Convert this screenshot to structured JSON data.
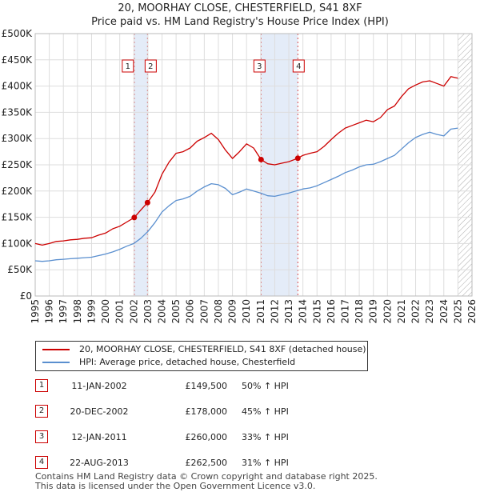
{
  "title_line1": "20, MOORHAY CLOSE, CHESTERFIELD, S41 8XF",
  "title_line2": "Price paid vs. HM Land Registry's House Price Index (HPI)",
  "legend": {
    "property": "20, MOORHAY CLOSE, CHESTERFIELD, S41 8XF (detached house)",
    "hpi": "HPI: Average price, detached house, Chesterfield"
  },
  "colors": {
    "property": "#cc0000",
    "hpi": "#5a8fcf",
    "shade": "#e4ecf8",
    "grid": "#dddddd"
  },
  "sales": [
    {
      "num": "1",
      "date": "11-JAN-2002",
      "price": "£149,500",
      "hpi": "50% ↑ HPI"
    },
    {
      "num": "2",
      "date": "20-DEC-2002",
      "price": "£178,000",
      "hpi": "45% ↑ HPI"
    },
    {
      "num": "3",
      "date": "12-JAN-2011",
      "price": "£260,000",
      "hpi": "33% ↑ HPI"
    },
    {
      "num": "4",
      "date": "22-AUG-2013",
      "price": "£262,500",
      "hpi": "31% ↑ HPI"
    }
  ],
  "footer_line1": "Contains HM Land Registry data © Crown copyright and database right 2025.",
  "footer_line2": "This data is licensed under the Open Government Licence v3.0.",
  "chart_data": {
    "type": "line",
    "title": "20, MOORHAY CLOSE, CHESTERFIELD, S41 8XF",
    "subtitle": "Price paid vs. HM Land Registry's House Price Index (HPI)",
    "xlabel": "",
    "ylabel": "",
    "xlim": [
      1995,
      2026
    ],
    "ylim": [
      0,
      500000
    ],
    "y_ticks": [
      0,
      50000,
      100000,
      150000,
      200000,
      250000,
      300000,
      350000,
      400000,
      450000,
      500000
    ],
    "y_tick_labels": [
      "£0",
      "£50K",
      "£100K",
      "£150K",
      "£200K",
      "£250K",
      "£300K",
      "£350K",
      "£400K",
      "£450K",
      "£500K"
    ],
    "x_ticks": [
      1995,
      1996,
      1997,
      1998,
      1999,
      2000,
      2001,
      2002,
      2003,
      2004,
      2005,
      2006,
      2007,
      2008,
      2009,
      2010,
      2011,
      2012,
      2013,
      2014,
      2015,
      2016,
      2017,
      2018,
      2019,
      2020,
      2021,
      2022,
      2023,
      2024,
      2025,
      2026
    ],
    "grid": true,
    "shaded_periods": [
      [
        2002.03,
        2002.97
      ],
      [
        2011.03,
        2013.64
      ]
    ],
    "hatched_future_from": 2025.0,
    "series": [
      {
        "name": "20, MOORHAY CLOSE, CHESTERFIELD, S41 8XF (detached house)",
        "x": [
          1995.0,
          1995.5,
          1996.0,
          1996.5,
          1997.0,
          1997.5,
          1998.0,
          1998.5,
          1999.0,
          1999.5,
          2000.0,
          2000.5,
          2001.0,
          2001.5,
          2002.03,
          2002.5,
          2002.97,
          2003.5,
          2004.0,
          2004.5,
          2005.0,
          2005.5,
          2006.0,
          2006.5,
          2007.0,
          2007.5,
          2008.0,
          2008.5,
          2009.0,
          2009.5,
          2010.0,
          2010.5,
          2011.03,
          2011.5,
          2012.0,
          2012.5,
          2013.0,
          2013.64,
          2014.0,
          2014.5,
          2015.0,
          2015.5,
          2016.0,
          2016.5,
          2017.0,
          2017.5,
          2018.0,
          2018.5,
          2019.0,
          2019.5,
          2020.0,
          2020.5,
          2021.0,
          2021.5,
          2022.0,
          2022.5,
          2023.0,
          2023.5,
          2024.0,
          2024.5,
          2025.0
        ],
        "values": [
          100000,
          97000,
          100000,
          104000,
          105000,
          107000,
          108000,
          110000,
          111000,
          116000,
          120000,
          128000,
          133000,
          141000,
          149500,
          164000,
          178000,
          198000,
          232000,
          255000,
          272000,
          275000,
          282000,
          295000,
          302000,
          310000,
          298000,
          278000,
          262000,
          275000,
          290000,
          282000,
          260000,
          252000,
          250000,
          253000,
          256000,
          262500,
          268000,
          272000,
          275000,
          285000,
          298000,
          310000,
          320000,
          325000,
          330000,
          335000,
          332000,
          340000,
          355000,
          362000,
          380000,
          395000,
          402000,
          408000,
          410000,
          405000,
          400000,
          418000,
          415000
        ]
      },
      {
        "name": "HPI: Average price, detached house, Chesterfield",
        "x": [
          1995.0,
          1995.5,
          1996.0,
          1996.5,
          1997.0,
          1997.5,
          1998.0,
          1998.5,
          1999.0,
          1999.5,
          2000.0,
          2000.5,
          2001.0,
          2001.5,
          2002.0,
          2002.5,
          2003.0,
          2003.5,
          2004.0,
          2004.5,
          2005.0,
          2005.5,
          2006.0,
          2006.5,
          2007.0,
          2007.5,
          2008.0,
          2008.5,
          2009.0,
          2009.5,
          2010.0,
          2010.5,
          2011.0,
          2011.5,
          2012.0,
          2012.5,
          2013.0,
          2013.5,
          2014.0,
          2014.5,
          2015.0,
          2015.5,
          2016.0,
          2016.5,
          2017.0,
          2017.5,
          2018.0,
          2018.5,
          2019.0,
          2019.5,
          2020.0,
          2020.5,
          2021.0,
          2021.5,
          2022.0,
          2022.5,
          2023.0,
          2023.5,
          2024.0,
          2024.5,
          2025.0
        ],
        "values": [
          67000,
          66000,
          67000,
          69000,
          70000,
          71000,
          72000,
          73000,
          74000,
          77000,
          80000,
          84000,
          89000,
          95000,
          100000,
          110000,
          123000,
          140000,
          160000,
          172000,
          182000,
          185000,
          190000,
          200000,
          208000,
          214000,
          212000,
          205000,
          193000,
          198000,
          204000,
          200000,
          196000,
          191000,
          190000,
          193000,
          196000,
          200000,
          204000,
          206000,
          210000,
          216000,
          222000,
          228000,
          235000,
          240000,
          246000,
          250000,
          251000,
          256000,
          262000,
          268000,
          280000,
          292000,
          302000,
          308000,
          312000,
          308000,
          305000,
          318000,
          320000
        ]
      }
    ],
    "sale_markers": [
      {
        "label": "1",
        "x": 2002.03,
        "value": 149500
      },
      {
        "label": "2",
        "x": 2002.97,
        "value": 178000
      },
      {
        "label": "3",
        "x": 2011.03,
        "value": 260000
      },
      {
        "label": "4",
        "x": 2013.64,
        "value": 262500
      }
    ],
    "legend_position": "below-chart"
  }
}
